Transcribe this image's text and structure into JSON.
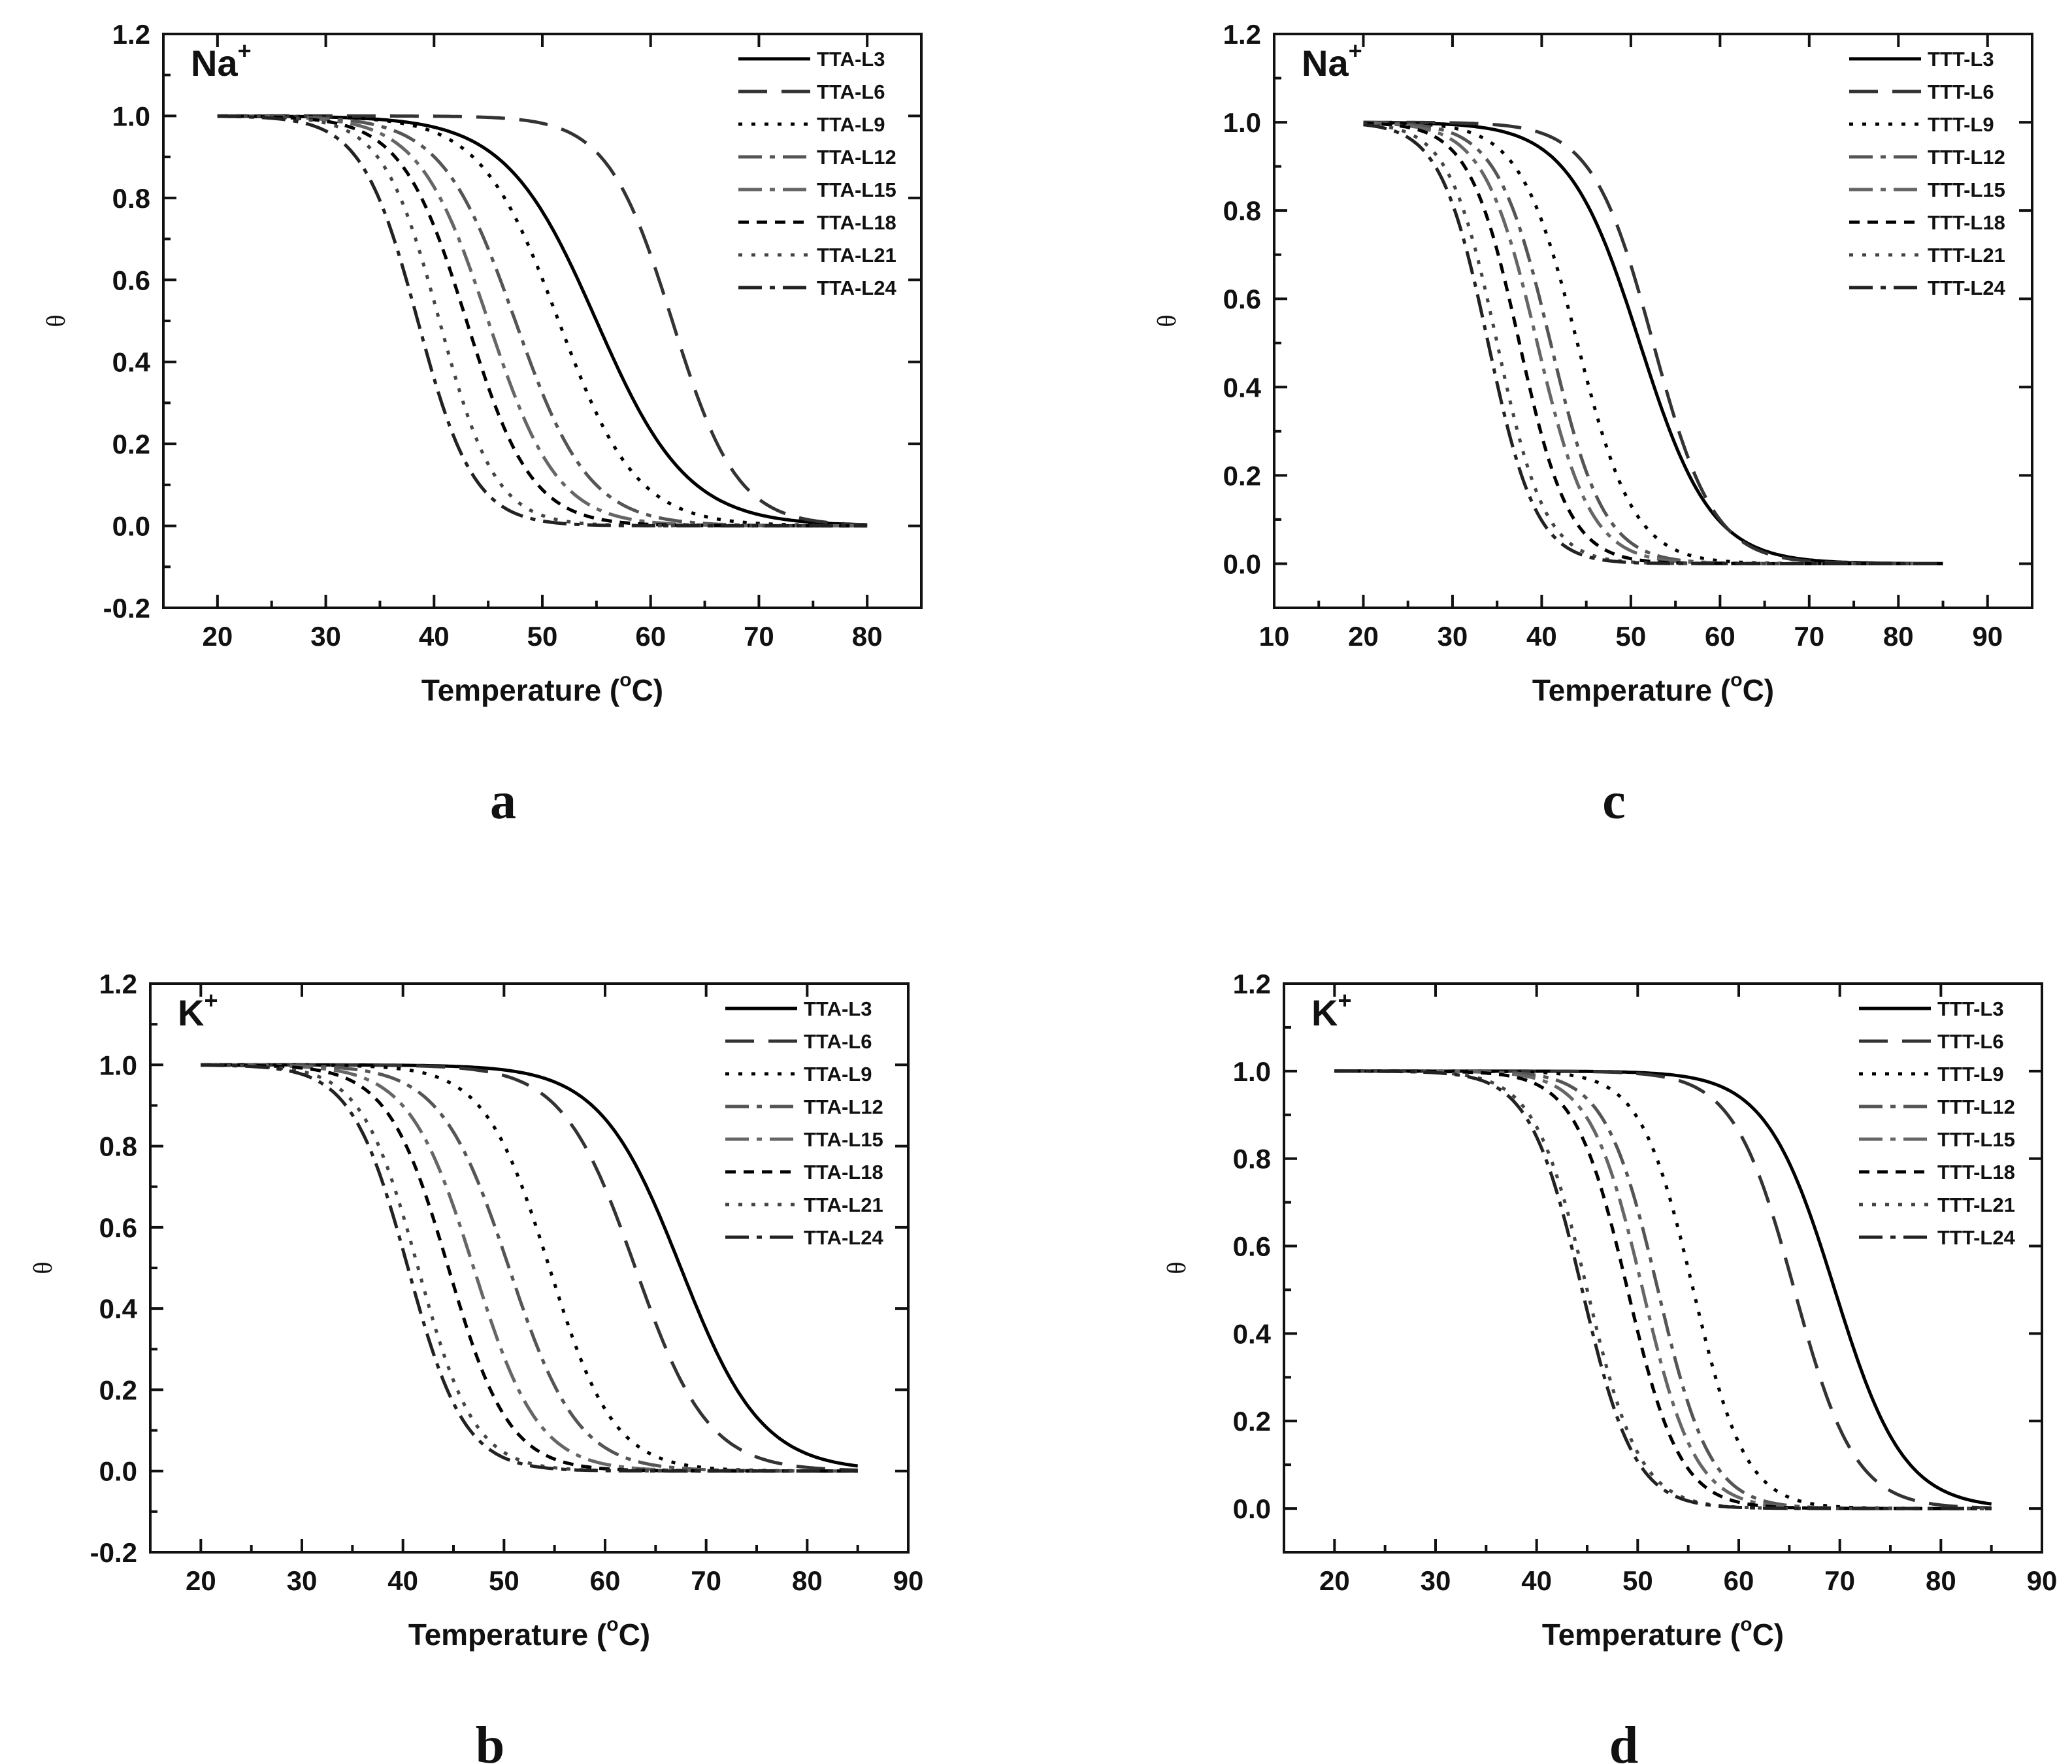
{
  "figure": {
    "background": "#ffffff",
    "axis_color": "#111111"
  },
  "chart_data": [
    {
      "id": "a",
      "panel_label": "a",
      "type": "line",
      "annotation": {
        "ion": "Na",
        "sup": "+"
      },
      "xlabel": {
        "text": "Temperature (",
        "sup": "o",
        "unit": "C)"
      },
      "ylabel": "θ",
      "xlim": [
        15,
        85
      ],
      "ylim": [
        -0.2,
        1.2
      ],
      "xticks": [
        20,
        30,
        40,
        50,
        60,
        70,
        80
      ],
      "xtick_labels": [
        "20",
        "30",
        "40",
        "50",
        "60",
        "70",
        "80"
      ],
      "yticks": [
        -0.2,
        0.0,
        0.2,
        0.4,
        0.6,
        0.8,
        1.0,
        1.2
      ],
      "ytick_labels": [
        "-0.2",
        "0.0",
        "0.2",
        "0.4",
        "0.6",
        "0.8",
        "1.0",
        "1.2"
      ],
      "legend_position": "top-right",
      "x_range": [
        20,
        80
      ],
      "series": [
        {
          "name": "TTA-L3",
          "tm": 55.0,
          "w": 4.2,
          "color": "#000000",
          "dash": "solid"
        },
        {
          "name": "TTA-L6",
          "tm": 62.0,
          "w": 3.0,
          "color": "#333333",
          "dash": "longdash"
        },
        {
          "name": "TTA-L9",
          "tm": 51.5,
          "w": 3.6,
          "color": "#000000",
          "dash": "dot"
        },
        {
          "name": "TTA-L12",
          "tm": 47.5,
          "w": 3.4,
          "color": "#555555",
          "dash": "dashdot"
        },
        {
          "name": "TTA-L15",
          "tm": 45.0,
          "w": 3.2,
          "color": "#666666",
          "dash": "dashdot"
        },
        {
          "name": "TTA-L18",
          "tm": 43.0,
          "w": 3.0,
          "color": "#000000",
          "dash": "shortdash"
        },
        {
          "name": "TTA-L21",
          "tm": 40.5,
          "w": 2.6,
          "color": "#444444",
          "dash": "dot"
        },
        {
          "name": "TTA-L24",
          "tm": 38.5,
          "w": 2.6,
          "color": "#222222",
          "dash": "dashdot"
        }
      ]
    },
    {
      "id": "c",
      "panel_label": "c",
      "type": "line",
      "annotation": {
        "ion": "Na",
        "sup": "+"
      },
      "xlabel": {
        "text": "Temperature (",
        "sup": "o",
        "unit": "C)"
      },
      "ylabel": "θ",
      "xlim": [
        10,
        95
      ],
      "ylim": [
        -0.1,
        1.2
      ],
      "xticks": [
        10,
        20,
        30,
        40,
        50,
        60,
        70,
        80,
        90
      ],
      "xtick_labels": [
        "10",
        "20",
        "30",
        "40",
        "50",
        "60",
        "70",
        "80",
        "90"
      ],
      "yticks": [
        0.0,
        0.2,
        0.4,
        0.6,
        0.8,
        1.0,
        1.2
      ],
      "ytick_labels": [
        "0.0",
        "0.2",
        "0.4",
        "0.6",
        "0.8",
        "1.0",
        "1.2"
      ],
      "legend_position": "top-right",
      "x_range": [
        20,
        85
      ],
      "series": [
        {
          "name": "TTT-L3",
          "tm": 51.0,
          "w": 4.0,
          "color": "#000000",
          "dash": "solid"
        },
        {
          "name": "TTT-L6",
          "tm": 52.5,
          "w": 3.4,
          "color": "#333333",
          "dash": "longdash"
        },
        {
          "name": "TTT-L9",
          "tm": 44.0,
          "w": 3.2,
          "color": "#000000",
          "dash": "dot"
        },
        {
          "name": "TTT-L12",
          "tm": 41.0,
          "w": 3.0,
          "color": "#555555",
          "dash": "dashdot"
        },
        {
          "name": "TTT-L15",
          "tm": 39.5,
          "w": 3.0,
          "color": "#666666",
          "dash": "dashdot"
        },
        {
          "name": "TTT-L18",
          "tm": 37.5,
          "w": 2.8,
          "color": "#000000",
          "dash": "shortdash"
        },
        {
          "name": "TTT-L21",
          "tm": 35.0,
          "w": 2.7,
          "color": "#444444",
          "dash": "dot"
        },
        {
          "name": "TTT-L24",
          "tm": 34.0,
          "w": 2.7,
          "color": "#222222",
          "dash": "dashdot"
        }
      ]
    },
    {
      "id": "b",
      "panel_label": "b",
      "type": "line",
      "annotation": {
        "ion": "K",
        "sup": "+"
      },
      "xlabel": {
        "text": "Temperature (",
        "sup": "o",
        "unit": "C)"
      },
      "ylabel": "θ",
      "xlim": [
        15,
        90
      ],
      "ylim": [
        -0.2,
        1.2
      ],
      "xticks": [
        20,
        30,
        40,
        50,
        60,
        70,
        80,
        90
      ],
      "xtick_labels": [
        "20",
        "30",
        "40",
        "50",
        "60",
        "70",
        "80",
        "90"
      ],
      "yticks": [
        -0.2,
        0.0,
        0.2,
        0.4,
        0.6,
        0.8,
        1.0,
        1.2
      ],
      "ytick_labels": [
        "-0.2",
        "0.0",
        "0.2",
        "0.4",
        "0.6",
        "0.8",
        "1.0",
        "1.2"
      ],
      "legend_position": "top-right",
      "x_range": [
        20,
        85
      ],
      "series": [
        {
          "name": "TTA-L3",
          "tm": 67.5,
          "w": 4.0,
          "color": "#000000",
          "dash": "solid"
        },
        {
          "name": "TTA-L6",
          "tm": 63.0,
          "w": 3.6,
          "color": "#333333",
          "dash": "longdash"
        },
        {
          "name": "TTA-L9",
          "tm": 54.5,
          "w": 3.2,
          "color": "#000000",
          "dash": "dot"
        },
        {
          "name": "TTA-L12",
          "tm": 50.5,
          "w": 3.4,
          "color": "#555555",
          "dash": "dashdot"
        },
        {
          "name": "TTA-L15",
          "tm": 47.0,
          "w": 3.2,
          "color": "#666666",
          "dash": "dashdot"
        },
        {
          "name": "TTA-L18",
          "tm": 44.5,
          "w": 3.0,
          "color": "#000000",
          "dash": "shortdash"
        },
        {
          "name": "TTA-L21",
          "tm": 41.5,
          "w": 2.8,
          "color": "#444444",
          "dash": "dot"
        },
        {
          "name": "TTA-L24",
          "tm": 40.5,
          "w": 2.8,
          "color": "#222222",
          "dash": "dashdot"
        }
      ]
    },
    {
      "id": "d",
      "panel_label": "d",
      "type": "line",
      "annotation": {
        "ion": "K",
        "sup": "+"
      },
      "xlabel": {
        "text": "Temperature (",
        "sup": "o",
        "unit": "C)"
      },
      "ylabel": "θ",
      "xlim": [
        15,
        90
      ],
      "ylim": [
        -0.1,
        1.2
      ],
      "xticks": [
        20,
        30,
        40,
        50,
        60,
        70,
        80,
        90
      ],
      "xtick_labels": [
        "20",
        "30",
        "40",
        "50",
        "60",
        "70",
        "80",
        "90"
      ],
      "yticks": [
        0.0,
        0.2,
        0.4,
        0.6,
        0.8,
        1.0,
        1.2
      ],
      "ytick_labels": [
        "0.0",
        "0.2",
        "0.4",
        "0.6",
        "0.8",
        "1.0",
        "1.2"
      ],
      "legend_position": "top-right",
      "x_range": [
        20,
        85
      ],
      "series": [
        {
          "name": "TTT-L3",
          "tm": 69.5,
          "w": 3.4,
          "color": "#000000",
          "dash": "solid"
        },
        {
          "name": "TTT-L6",
          "tm": 65.5,
          "w": 3.0,
          "color": "#333333",
          "dash": "longdash"
        },
        {
          "name": "TTT-L9",
          "tm": 55.5,
          "w": 2.6,
          "color": "#000000",
          "dash": "dot"
        },
        {
          "name": "TTT-L12",
          "tm": 52.0,
          "w": 2.6,
          "color": "#555555",
          "dash": "dashdot"
        },
        {
          "name": "TTT-L15",
          "tm": 50.5,
          "w": 2.6,
          "color": "#666666",
          "dash": "dashdot"
        },
        {
          "name": "TTT-L18",
          "tm": 49.0,
          "w": 2.6,
          "color": "#000000",
          "dash": "shortdash"
        },
        {
          "name": "TTT-L21",
          "tm": 45.0,
          "w": 2.6,
          "color": "#444444",
          "dash": "dot"
        },
        {
          "name": "TTT-L24",
          "tm": 44.5,
          "w": 2.6,
          "color": "#222222",
          "dash": "dashdot"
        }
      ]
    }
  ]
}
